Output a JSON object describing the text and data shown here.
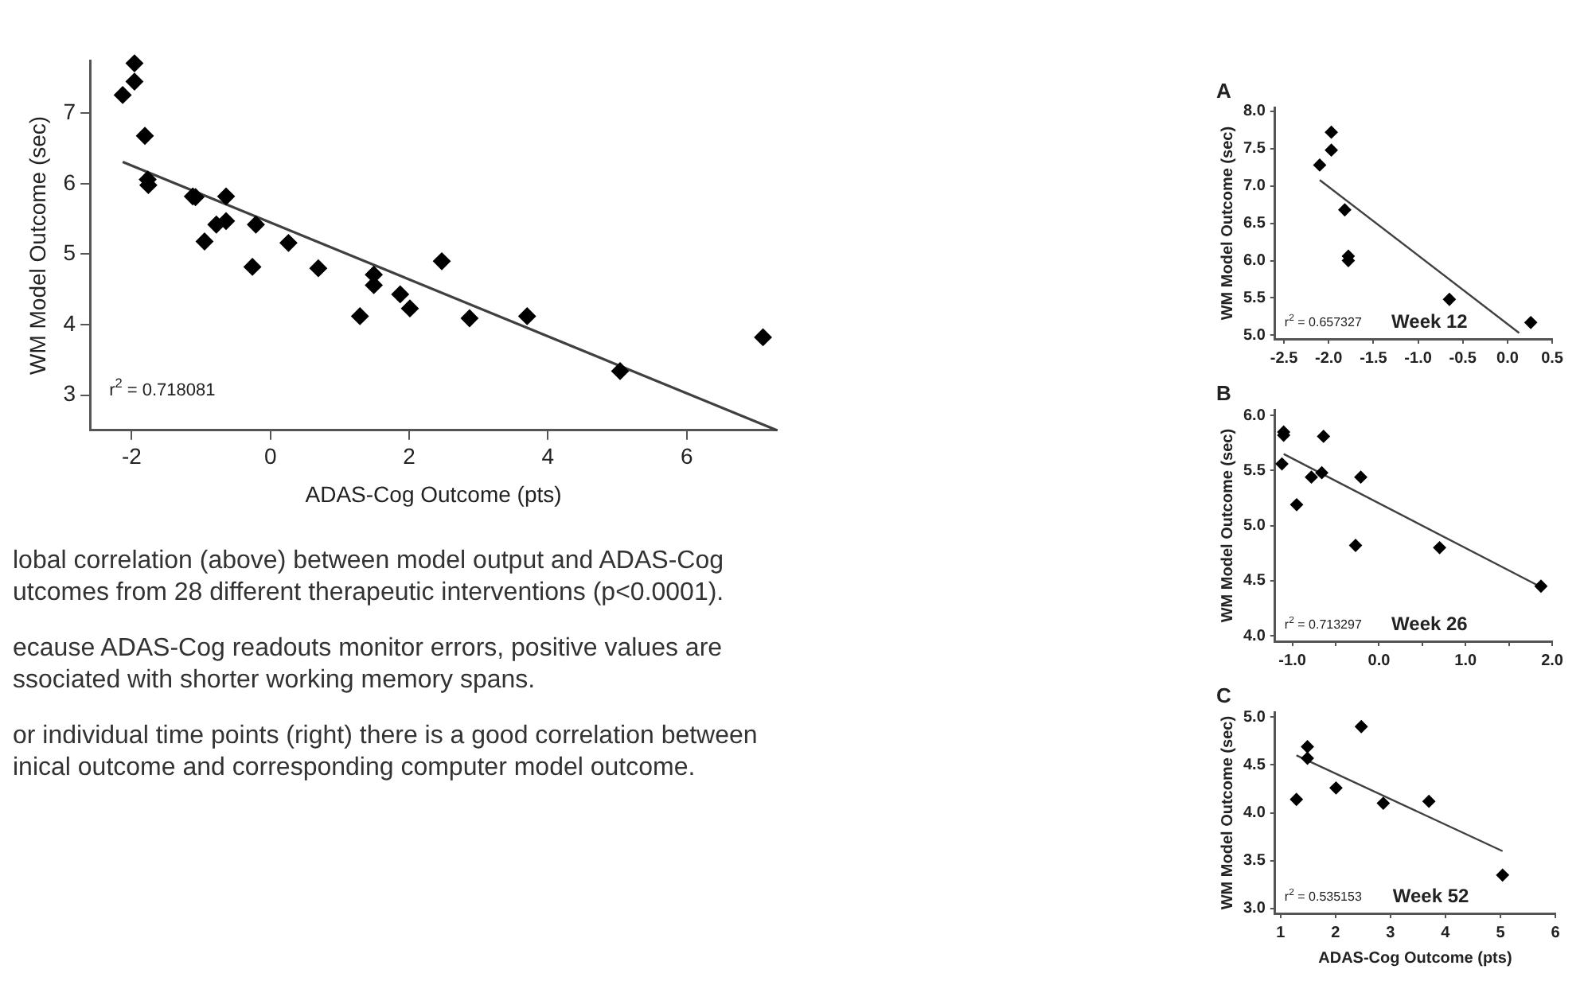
{
  "chart_data": [
    {
      "type": "scatter",
      "xlabel": "ADAS-Cog Outcome (pts)",
      "ylabel": "WM Model Outcome (sec)",
      "xlim": [
        -2.6,
        7.3
      ],
      "ylim": [
        2.5,
        7.75
      ],
      "xticks": [
        -2,
        0,
        2,
        4,
        6
      ],
      "yticks": [
        3,
        4,
        5,
        6,
        7
      ],
      "grid": false,
      "legend": false,
      "annotations": [
        "r$^{2}$ = 0.718081",
        "lobal correlation (above) between model output and ADAS-Cog",
        "utcomes from 28 different therapeutic interventions (p<0.0001).",
        "ecause ADAS-Cog readouts monitor errors, positive values are",
        "ssociated with shorter working memory spans.",
        "or individual time points (right) there is a good correlation between",
        "inical outcome and corresponding computer model outcome."
      ],
      "series": [
        {
          "type": "scatter",
          "marker": "diamond",
          "color": "#000000",
          "x": [
            -2.13,
            -1.96,
            -1.96,
            -1.81,
            -1.77,
            -1.76,
            -1.12,
            -1.08,
            -0.64,
            -0.95,
            -0.78,
            -0.64,
            -0.21,
            -0.26,
            0.26,
            0.69,
            1.49,
            1.49,
            1.29,
            1.87,
            2.01,
            2.47,
            2.87,
            3.7,
            5.04,
            7.1
          ],
          "values": [
            7.26,
            7.71,
            7.45,
            6.68,
            6.06,
            5.98,
            5.82,
            5.81,
            5.82,
            5.18,
            5.42,
            5.47,
            5.42,
            4.82,
            5.16,
            4.8,
            4.71,
            4.56,
            4.12,
            4.43,
            4.23,
            4.9,
            4.09,
            4.12,
            3.34,
            3.82
          ]
        },
        {
          "type": "line",
          "marker": "none",
          "color": "#404040",
          "x": [
            -2.13,
            7.3
          ],
          "values": [
            6.31,
            2.5
          ]
        }
      ]
    },
    {
      "type": "scatter",
      "title": "A",
      "ylabel": "WM Model Outcome (sec)",
      "xlim": [
        -2.6,
        0.5
      ],
      "ylim": [
        4.95,
        8.05
      ],
      "xticks": [
        {
          "value": -2.5,
          "label": "-2.5"
        },
        {
          "value": -2,
          "label": "-2.0"
        },
        {
          "value": -1.5,
          "label": "-1.5"
        },
        {
          "value": -1,
          "label": "-1.0"
        },
        {
          "value": -0.5,
          "label": "-0.5"
        },
        {
          "value": 0,
          "label": "0.0"
        },
        {
          "value": 0.5,
          "label": "0.5"
        }
      ],
      "yticks": [
        {
          "value": 5,
          "label": "5.0"
        },
        {
          "value": 5.5,
          "label": "5.5"
        },
        {
          "value": 6,
          "label": "6.0"
        },
        {
          "value": 6.5,
          "label": "6.5"
        },
        {
          "value": 7,
          "label": "7.0"
        },
        {
          "value": 7.5,
          "label": "7.5"
        },
        {
          "value": 8,
          "label": "8.0"
        }
      ],
      "grid": false,
      "legend": false,
      "annotations": [
        "r$^{2}$ = 0.657327",
        "Week 12"
      ],
      "series": [
        {
          "type": "scatter",
          "marker": "diamond",
          "color": "#000000",
          "x": [
            -2.1,
            -1.97,
            -1.97,
            -1.82,
            -1.78,
            -1.78,
            -0.65,
            0.26
          ],
          "values": [
            7.28,
            7.72,
            7.48,
            6.68,
            6.06,
            6.0,
            5.48,
            5.17
          ]
        },
        {
          "type": "line",
          "marker": "none",
          "color": "#404040",
          "x": [
            -2.1,
            0.13
          ],
          "values": [
            7.08,
            5.03
          ]
        }
      ]
    },
    {
      "type": "scatter",
      "title": "B",
      "ylabel": "WM Model Outcome (sec)",
      "xlim": [
        -1.2,
        2.0
      ],
      "ylim": [
        3.95,
        6.05
      ],
      "xticks": [
        {
          "value": -1,
          "label": "-1.0"
        },
        {
          "value": -0.5,
          "label": null
        },
        {
          "value": 0,
          "label": "0.0"
        },
        {
          "value": 0.5,
          "label": null
        },
        {
          "value": 1,
          "label": "1.0"
        },
        {
          "value": 1.5,
          "label": null
        },
        {
          "value": 2,
          "label": "2.0"
        }
      ],
      "yticks": [
        {
          "value": 4,
          "label": "4.0"
        },
        {
          "value": 4.5,
          "label": "4.5"
        },
        {
          "value": 5,
          "label": "5.0"
        },
        {
          "value": 5.5,
          "label": "5.5"
        },
        {
          "value": 6,
          "label": "6.0"
        }
      ],
      "grid": false,
      "legend": false,
      "annotations": [
        "r$^{2}$ = 0.713297",
        "Week 26"
      ],
      "series": [
        {
          "type": "scatter",
          "marker": "diamond",
          "color": "#000000",
          "x": [
            -1.1,
            -1.1,
            -1.12,
            -0.95,
            -0.78,
            -0.66,
            -0.64,
            -0.21,
            -0.27,
            0.7,
            1.87
          ],
          "values": [
            5.82,
            5.85,
            5.56,
            5.19,
            5.44,
            5.48,
            5.81,
            5.44,
            4.82,
            4.8,
            4.45
          ]
        },
        {
          "type": "line",
          "marker": "none",
          "color": "#404040",
          "x": [
            -1.1,
            1.9
          ],
          "values": [
            5.65,
            4.43
          ]
        }
      ]
    },
    {
      "type": "scatter",
      "title": "C",
      "xlabel": "ADAS-Cog Outcome (pts)",
      "ylabel": "WM Model Outcome (sec)",
      "xlim": [
        0.9,
        6.0
      ],
      "ylim": [
        2.95,
        5.05
      ],
      "xticks": [
        1,
        2,
        3,
        4,
        5,
        6
      ],
      "yticks": [
        {
          "value": 3,
          "label": "3.0"
        },
        {
          "value": 3.5,
          "label": "3.5"
        },
        {
          "value": 4,
          "label": "4.0"
        },
        {
          "value": 4.5,
          "label": "4.5"
        },
        {
          "value": 5,
          "label": "5.0"
        }
      ],
      "grid": false,
      "legend": false,
      "annotations": [
        "r$^{2}$ = 0.535153",
        "Week 52"
      ],
      "series": [
        {
          "type": "scatter",
          "marker": "diamond",
          "color": "#000000",
          "x": [
            1.29,
            1.49,
            1.49,
            2.01,
            2.47,
            2.87,
            3.7,
            5.04
          ],
          "values": [
            4.14,
            4.69,
            4.57,
            4.26,
            4.9,
            4.1,
            4.12,
            3.35
          ]
        },
        {
          "type": "line",
          "marker": "none",
          "color": "#404040",
          "x": [
            1.29,
            5.04
          ],
          "values": [
            4.6,
            3.6
          ]
        }
      ]
    }
  ]
}
